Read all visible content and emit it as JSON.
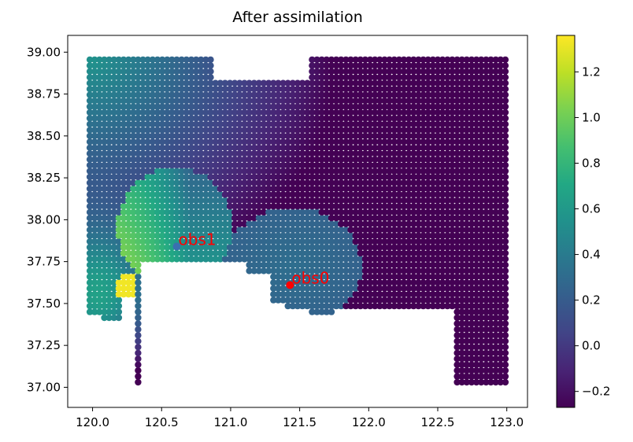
{
  "chart_data": {
    "type": "heatmap",
    "title": "After assimilation",
    "xlabel": "",
    "ylabel": "",
    "xlim": [
      119.82,
      123.15
    ],
    "ylim": [
      36.88,
      39.1
    ],
    "x_ticks": [
      {
        "value": 120.0,
        "label": "120.0"
      },
      {
        "value": 120.5,
        "label": "120.5"
      },
      {
        "value": 121.0,
        "label": "121.0"
      },
      {
        "value": 121.5,
        "label": "121.5"
      },
      {
        "value": 122.0,
        "label": "122.0"
      },
      {
        "value": 122.5,
        "label": "122.5"
      },
      {
        "value": 123.0,
        "label": "123.0"
      }
    ],
    "y_ticks": [
      {
        "value": 37.0,
        "label": "37.00"
      },
      {
        "value": 37.25,
        "label": "37.25"
      },
      {
        "value": 37.5,
        "label": "37.50"
      },
      {
        "value": 37.75,
        "label": "37.75"
      },
      {
        "value": 38.0,
        "label": "38.00"
      },
      {
        "value": 38.25,
        "label": "38.25"
      },
      {
        "value": 38.5,
        "label": "38.50"
      },
      {
        "value": 38.75,
        "label": "38.75"
      },
      {
        "value": 39.0,
        "label": "39.00"
      }
    ],
    "colorbar": {
      "colormap": "viridis",
      "range": [
        -0.27,
        1.36
      ],
      "ticks": [
        {
          "value": -0.2,
          "label": "−0.2"
        },
        {
          "value": 0.0,
          "label": "0.0"
        },
        {
          "value": 0.2,
          "label": "0.2"
        },
        {
          "value": 0.4,
          "label": "0.4"
        },
        {
          "value": 0.6,
          "label": "0.6"
        },
        {
          "value": 0.8,
          "label": "0.8"
        },
        {
          "value": 1.0,
          "label": "1.0"
        },
        {
          "value": 1.2,
          "label": "1.2"
        }
      ]
    },
    "observations": [
      {
        "name": "obs0",
        "x": 121.43,
        "y": 37.61,
        "color": "#ff0000"
      },
      {
        "name": "obs1",
        "x": 120.61,
        "y": 37.84,
        "color": "#3a6fb0"
      }
    ],
    "grid": false,
    "legend": "none"
  }
}
